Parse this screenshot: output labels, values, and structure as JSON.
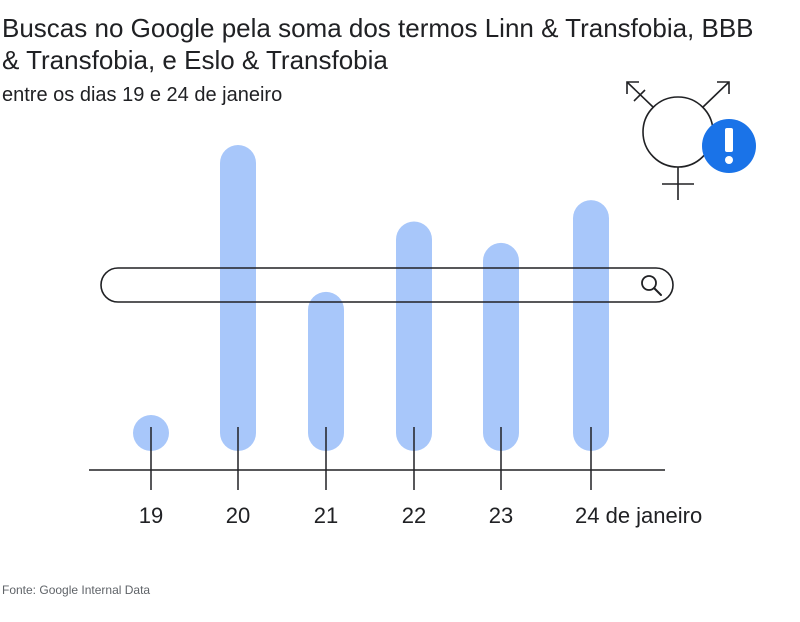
{
  "title": "Buscas no Google pela soma dos termos Linn & Transfobia, BBB & Transfobia, e Eslo & Transfobia",
  "subtitle": "entre os dias 19 e 24 de janeiro",
  "source": "Fonte: Google Internal Data",
  "icons": [
    "transgender-symbol-icon",
    "exclamation-icon",
    "search-icon"
  ],
  "colors": {
    "bar": "#a8c7fa",
    "accent": "#1a73e8",
    "ink": "#202124"
  },
  "chart_data": {
    "type": "bar",
    "categories": [
      "19",
      "20",
      "21",
      "22",
      "23",
      "24 de janeiro"
    ],
    "values": [
      3,
      100,
      52,
      75,
      68,
      82
    ],
    "ylim": [
      0,
      100
    ],
    "xlabel": "",
    "ylabel": "",
    "grid": false,
    "legend": "none"
  }
}
